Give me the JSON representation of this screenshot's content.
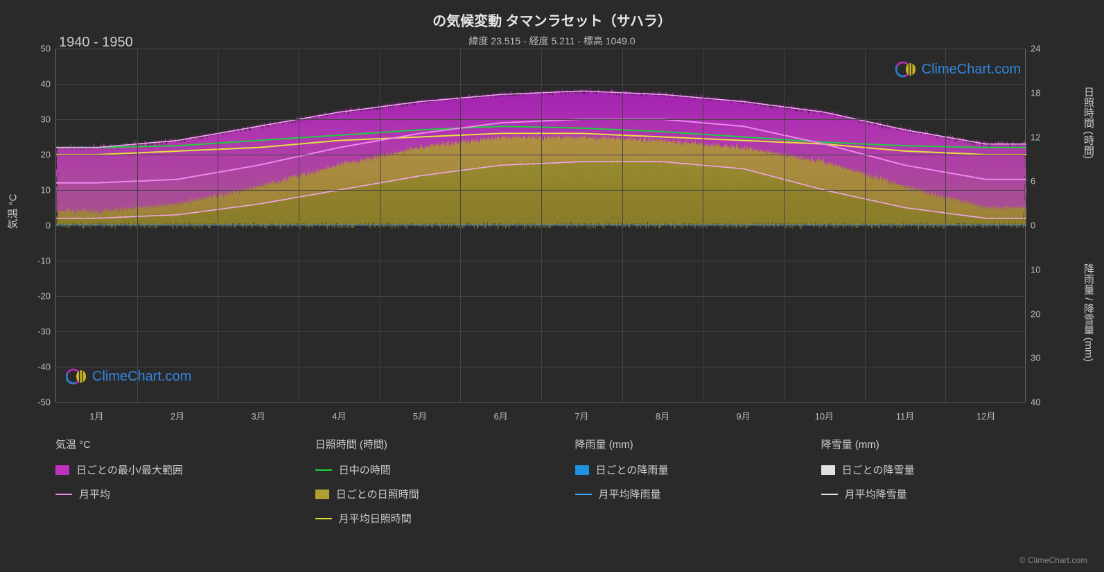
{
  "title": "の気候変動 タマンラセット（サハラ）",
  "subtitle": "緯度 23.515 - 経度 5.211 - 標高 1049.0",
  "period": "1940 - 1950",
  "watermark_text": "ClimeChart.com",
  "copyright": "© ClimeChart.com",
  "chart": {
    "type": "climate-multiaxis",
    "background_color": "#2a2a2a",
    "plot_bg": "#2a2a2a",
    "grid_color": "#444444",
    "text_color": "#cccccc",
    "left_axis": {
      "label": "気温 °C",
      "min": -50,
      "max": 50,
      "step": 10,
      "ticks": [
        50,
        40,
        30,
        20,
        10,
        0,
        -10,
        -20,
        -30,
        -40,
        -50
      ]
    },
    "right_axis_top": {
      "label": "日照時間 (時間)",
      "ticks": [
        24,
        18,
        12,
        6,
        0
      ],
      "map_from_temp": [
        50,
        37.5,
        25,
        12.5,
        0
      ]
    },
    "right_axis_bottom": {
      "label": "降雨量 / 降雪量 (mm)",
      "ticks": [
        0,
        10,
        20,
        30,
        40
      ],
      "map_from_temp": [
        0,
        -12.5,
        -25,
        -37.5,
        -50
      ]
    },
    "x_axis": {
      "labels": [
        "1月",
        "2月",
        "3月",
        "4月",
        "5月",
        "6月",
        "7月",
        "8月",
        "9月",
        "10月",
        "11月",
        "12月"
      ]
    },
    "series": {
      "temp_range_band": {
        "color": "#c030c0",
        "fuzzy_top_color": "#b020c0",
        "min": [
          2,
          3,
          6,
          10,
          14,
          17,
          18,
          18,
          16,
          10,
          5,
          2
        ],
        "max": [
          22,
          24,
          28,
          32,
          35,
          37,
          38,
          37,
          35,
          32,
          27,
          23
        ]
      },
      "temp_monthly_avg": {
        "color": "#ee88ee",
        "line_width": 2,
        "values": [
          12,
          13,
          17,
          22,
          26,
          29,
          30,
          30,
          28,
          23,
          17,
          13
        ]
      },
      "daytime_hours": {
        "color": "#20d040",
        "line_width": 2,
        "values_temp_scale": [
          22,
          22.5,
          24,
          25.5,
          27,
          28,
          27.5,
          26.5,
          25,
          23.5,
          22.5,
          22
        ]
      },
      "sunshine_daily_fill": {
        "color": "#b0a030",
        "top_temp_scale": [
          4,
          6,
          11,
          17,
          22,
          25,
          25,
          24,
          22,
          18,
          11,
          5
        ]
      },
      "sunshine_monthly_avg": {
        "color": "#e8e040",
        "line_width": 2,
        "values_temp_scale": [
          20,
          21,
          22,
          24,
          25,
          26,
          26,
          25,
          24,
          23,
          21,
          20
        ]
      },
      "rain_daily": {
        "color": "#2090e0",
        "baseline_temp_scale": 0
      },
      "rain_monthly_avg": {
        "color": "#40a0e8",
        "line_width": 2,
        "values_temp_scale": [
          0,
          0,
          0,
          0,
          0,
          0,
          0,
          0,
          0,
          0,
          0,
          0
        ]
      },
      "snow_daily": {
        "color": "#e0e0e0"
      },
      "snow_monthly_avg": {
        "color": "#e8e8e8",
        "line_width": 2
      }
    }
  },
  "legend": {
    "columns": [
      {
        "header": "気温 °C",
        "items": [
          {
            "type": "box",
            "color": "#c030c0",
            "label": "日ごとの最小/最大範囲"
          },
          {
            "type": "line",
            "color": "#ee88ee",
            "label": "月平均"
          }
        ]
      },
      {
        "header": "日照時間 (時間)",
        "items": [
          {
            "type": "line",
            "color": "#20d040",
            "label": "日中の時間"
          },
          {
            "type": "box",
            "color": "#b0a030",
            "label": "日ごとの日照時間"
          },
          {
            "type": "line",
            "color": "#e8e040",
            "label": "月平均日照時間"
          }
        ]
      },
      {
        "header": "降雨量 (mm)",
        "items": [
          {
            "type": "box",
            "color": "#2090e0",
            "label": "日ごとの降雨量"
          },
          {
            "type": "line",
            "color": "#40a0e8",
            "label": "月平均降雨量"
          }
        ]
      },
      {
        "header": "降雪量 (mm)",
        "items": [
          {
            "type": "box",
            "color": "#e0e0e0",
            "label": "日ごとの降雪量"
          },
          {
            "type": "line",
            "color": "#e8e8e8",
            "label": "月平均降雪量"
          }
        ]
      }
    ]
  }
}
